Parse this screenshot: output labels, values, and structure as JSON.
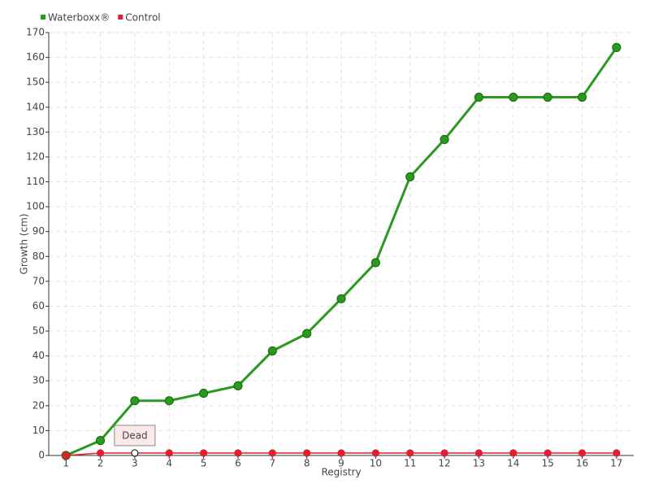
{
  "chart_data": {
    "type": "line",
    "x_label": "Registry",
    "y_label": "Growth (cm)",
    "x": [
      1,
      2,
      3,
      4,
      5,
      6,
      7,
      8,
      9,
      10,
      11,
      12,
      13,
      14,
      15,
      16,
      17
    ],
    "series": [
      {
        "name": "Waterboxx®",
        "color": "#2a9a1e",
        "values": [
          0,
          6,
          22,
          22,
          25,
          28,
          42,
          49,
          63,
          77.5,
          112,
          127,
          144,
          144,
          144,
          144,
          164
        ]
      },
      {
        "name": "Control",
        "color": "#e0202e",
        "values": [
          0,
          1,
          1,
          1,
          1,
          1,
          1,
          1,
          1,
          1,
          1,
          1,
          1,
          1,
          1,
          1,
          1
        ]
      }
    ],
    "annotations": [
      {
        "text": "Dead",
        "x": 3,
        "y": 1
      }
    ],
    "xlim": [
      0.5,
      17.5
    ],
    "xticks": [
      1,
      2,
      3,
      4,
      5,
      6,
      7,
      8,
      9,
      10,
      11,
      12,
      13,
      14,
      15,
      16,
      17
    ],
    "ylim": [
      0,
      170
    ],
    "yticks": [
      0,
      10,
      20,
      30,
      40,
      50,
      60,
      70,
      80,
      90,
      100,
      110,
      120,
      130,
      140,
      150,
      160,
      170
    ],
    "grid": true,
    "legend": "top-left"
  }
}
